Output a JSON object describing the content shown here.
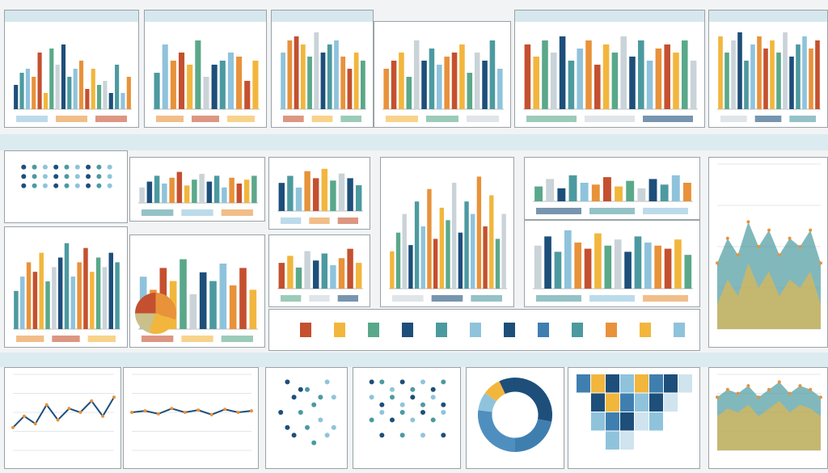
{
  "palette": {
    "navy": "#1d4f7a",
    "teal": "#4c9aa0",
    "lightblue": "#8fc3dc",
    "orange": "#e8923a",
    "rust": "#c4502f",
    "yellow": "#f2b63d",
    "green": "#5aa88a",
    "gray": "#c9d3d8"
  },
  "chart_data": [
    {
      "id": "p1",
      "type": "bar",
      "header": true,
      "values": [
        30,
        45,
        50,
        40,
        70,
        20,
        75,
        55,
        80,
        40,
        50,
        60,
        25,
        50,
        30,
        35,
        20,
        55,
        20,
        40
      ],
      "ylim": [
        0,
        100
      ]
    },
    {
      "id": "p2",
      "type": "bar",
      "header": true,
      "values": [
        45,
        80,
        60,
        70,
        55,
        85,
        40,
        55,
        60,
        70,
        65,
        35,
        60
      ],
      "ylim": [
        0,
        100
      ]
    },
    {
      "id": "p3",
      "type": "bar",
      "header": true,
      "values": [
        70,
        85,
        90,
        80,
        65,
        95,
        70,
        80,
        85,
        65,
        50,
        70,
        60
      ],
      "ylim": [
        0,
        100
      ]
    },
    {
      "id": "p4",
      "type": "bar",
      "header": false,
      "values": [
        50,
        60,
        70,
        40,
        85,
        60,
        75,
        55,
        65,
        70,
        80,
        45,
        70,
        60,
        85,
        50
      ],
      "ylim": [
        0,
        100
      ]
    },
    {
      "id": "p5",
      "type": "bar",
      "header": true,
      "values": [
        80,
        65,
        85,
        70,
        90,
        60,
        75,
        85,
        55,
        80,
        70,
        90,
        65,
        85,
        60,
        75,
        80,
        70,
        85,
        60
      ],
      "ylim": [
        0,
        100
      ]
    },
    {
      "id": "p6",
      "type": "bar",
      "header": true,
      "values": [
        90,
        70,
        85,
        95,
        60,
        80,
        90,
        75,
        85,
        70,
        95,
        65,
        80,
        90,
        75,
        85
      ],
      "ylim": [
        0,
        100
      ]
    },
    {
      "id": "p7",
      "type": "scatter",
      "header": false,
      "x": [
        1,
        2,
        3,
        4,
        5,
        6,
        7,
        8,
        9,
        1,
        2,
        3,
        4,
        5,
        6,
        7,
        8,
        9,
        1,
        2,
        3,
        4,
        5,
        6,
        7,
        8,
        9
      ],
      "y": [
        8,
        8,
        8,
        8,
        8,
        8,
        8,
        8,
        8,
        6,
        6,
        6,
        6,
        6,
        6,
        6,
        6,
        6,
        4,
        4,
        4,
        4,
        4,
        4,
        4,
        4,
        4
      ],
      "xlim": [
        0,
        10
      ],
      "ylim": [
        0,
        10
      ]
    },
    {
      "id": "p8",
      "type": "bar",
      "header": false,
      "values": [
        40,
        55,
        70,
        50,
        65,
        80,
        45,
        60,
        75,
        55,
        70,
        40,
        65,
        50,
        60,
        70
      ],
      "ylim": [
        0,
        100
      ]
    },
    {
      "id": "p9",
      "type": "bar",
      "header": false,
      "values": [
        60,
        75,
        50,
        85,
        70,
        90,
        65,
        80,
        70,
        55
      ],
      "ylim": [
        0,
        100
      ]
    },
    {
      "id": "p10",
      "type": "bar",
      "header": false,
      "values": [
        40,
        55,
        70,
        60,
        80,
        50,
        65,
        75,
        90,
        55,
        70,
        85,
        60,
        75,
        65,
        80,
        70
      ],
      "ylim": [
        0,
        100
      ]
    },
    {
      "id": "p11",
      "type": "bar",
      "header": false,
      "values": [
        60,
        45,
        70,
        55,
        80,
        40,
        65,
        55,
        75,
        50,
        70,
        45
      ],
      "ylim": [
        0,
        100
      ]
    },
    {
      "id": "p12",
      "type": "pie",
      "header": false,
      "values": [
        30,
        25,
        20,
        25
      ]
    },
    {
      "id": "p13",
      "type": "bar",
      "header": false,
      "values": [
        55,
        70,
        45,
        80,
        60,
        75,
        50,
        65,
        85,
        55
      ],
      "ylim": [
        0,
        100
      ]
    },
    {
      "id": "p14",
      "type": "bar",
      "header": false,
      "values": [
        30,
        45,
        60,
        35,
        70,
        50,
        80,
        40,
        65,
        55,
        85,
        45,
        70,
        60,
        90,
        50,
        75,
        40,
        60
      ],
      "ylim": [
        0,
        100
      ]
    },
    {
      "id": "p15",
      "type": "bar",
      "header": false,
      "values": [
        40,
        60,
        35,
        70,
        50,
        45,
        65,
        40,
        55,
        35,
        60,
        45,
        70,
        50
      ],
      "ylim": [
        0,
        100
      ]
    },
    {
      "id": "p16",
      "type": "bar",
      "header": false,
      "values": [
        70,
        85,
        60,
        95,
        75,
        65,
        90,
        70,
        80,
        60,
        85,
        75,
        70,
        65,
        80,
        55
      ],
      "ylim": [
        0,
        100
      ]
    },
    {
      "id": "p17",
      "type": "area",
      "header": false,
      "values": [
        40,
        55,
        45,
        65,
        50,
        60,
        45,
        55,
        50,
        60,
        40
      ],
      "ylim": [
        0,
        100
      ]
    },
    {
      "id": "p18",
      "type": "line",
      "header": false,
      "values": [
        30,
        45,
        35,
        60,
        40,
        55,
        50,
        65,
        45,
        70
      ],
      "ylim": [
        0,
        100
      ]
    },
    {
      "id": "p19",
      "type": "line",
      "header": false,
      "values": [
        50,
        52,
        48,
        55,
        50,
        53,
        47,
        54,
        50,
        52
      ],
      "ylim": [
        0,
        100
      ]
    },
    {
      "id": "p20",
      "type": "scatter",
      "header": false,
      "x": [
        2,
        5,
        8,
        3,
        6,
        9,
        1,
        4,
        7,
        2,
        5,
        8,
        3,
        6,
        9,
        4,
        7
      ],
      "y": [
        9,
        8,
        9,
        7,
        6,
        7,
        5,
        5,
        4,
        3,
        3,
        2,
        2,
        1,
        3,
        8,
        7
      ],
      "xlim": [
        0,
        10
      ],
      "ylim": [
        0,
        10
      ]
    },
    {
      "id": "p21",
      "type": "scatter",
      "header": false,
      "x": [
        1,
        2,
        3,
        4,
        5,
        6,
        7,
        8,
        1,
        2,
        3,
        4,
        5,
        6,
        7,
        8,
        1,
        2,
        3,
        4,
        5,
        6,
        7,
        8,
        2,
        4,
        6,
        8
      ],
      "y": [
        9,
        9,
        8,
        9,
        8,
        9,
        8,
        9,
        7,
        6,
        7,
        6,
        7,
        6,
        7,
        6,
        4,
        5,
        4,
        5,
        4,
        5,
        4,
        5,
        2,
        2,
        2,
        2
      ],
      "xlim": [
        0,
        9
      ],
      "ylim": [
        0,
        10
      ]
    },
    {
      "id": "p22",
      "type": "donut",
      "header": false,
      "values": [
        28,
        22,
        27,
        8,
        8,
        7
      ]
    },
    {
      "id": "p23",
      "type": "heatmap",
      "header": false,
      "rows": 4,
      "cols": 8,
      "values": [
        3,
        5,
        4,
        2,
        5,
        3,
        4,
        1,
        0,
        4,
        5,
        3,
        2,
        4,
        1,
        0,
        0,
        2,
        3,
        4,
        1,
        2,
        0,
        0,
        0,
        0,
        2,
        1,
        0,
        0,
        0,
        0
      ]
    },
    {
      "id": "p24",
      "type": "area",
      "header": false,
      "values": [
        70,
        80,
        75,
        85,
        70,
        80,
        90,
        75,
        85,
        80,
        70
      ],
      "ylim": [
        0,
        100
      ]
    }
  ]
}
